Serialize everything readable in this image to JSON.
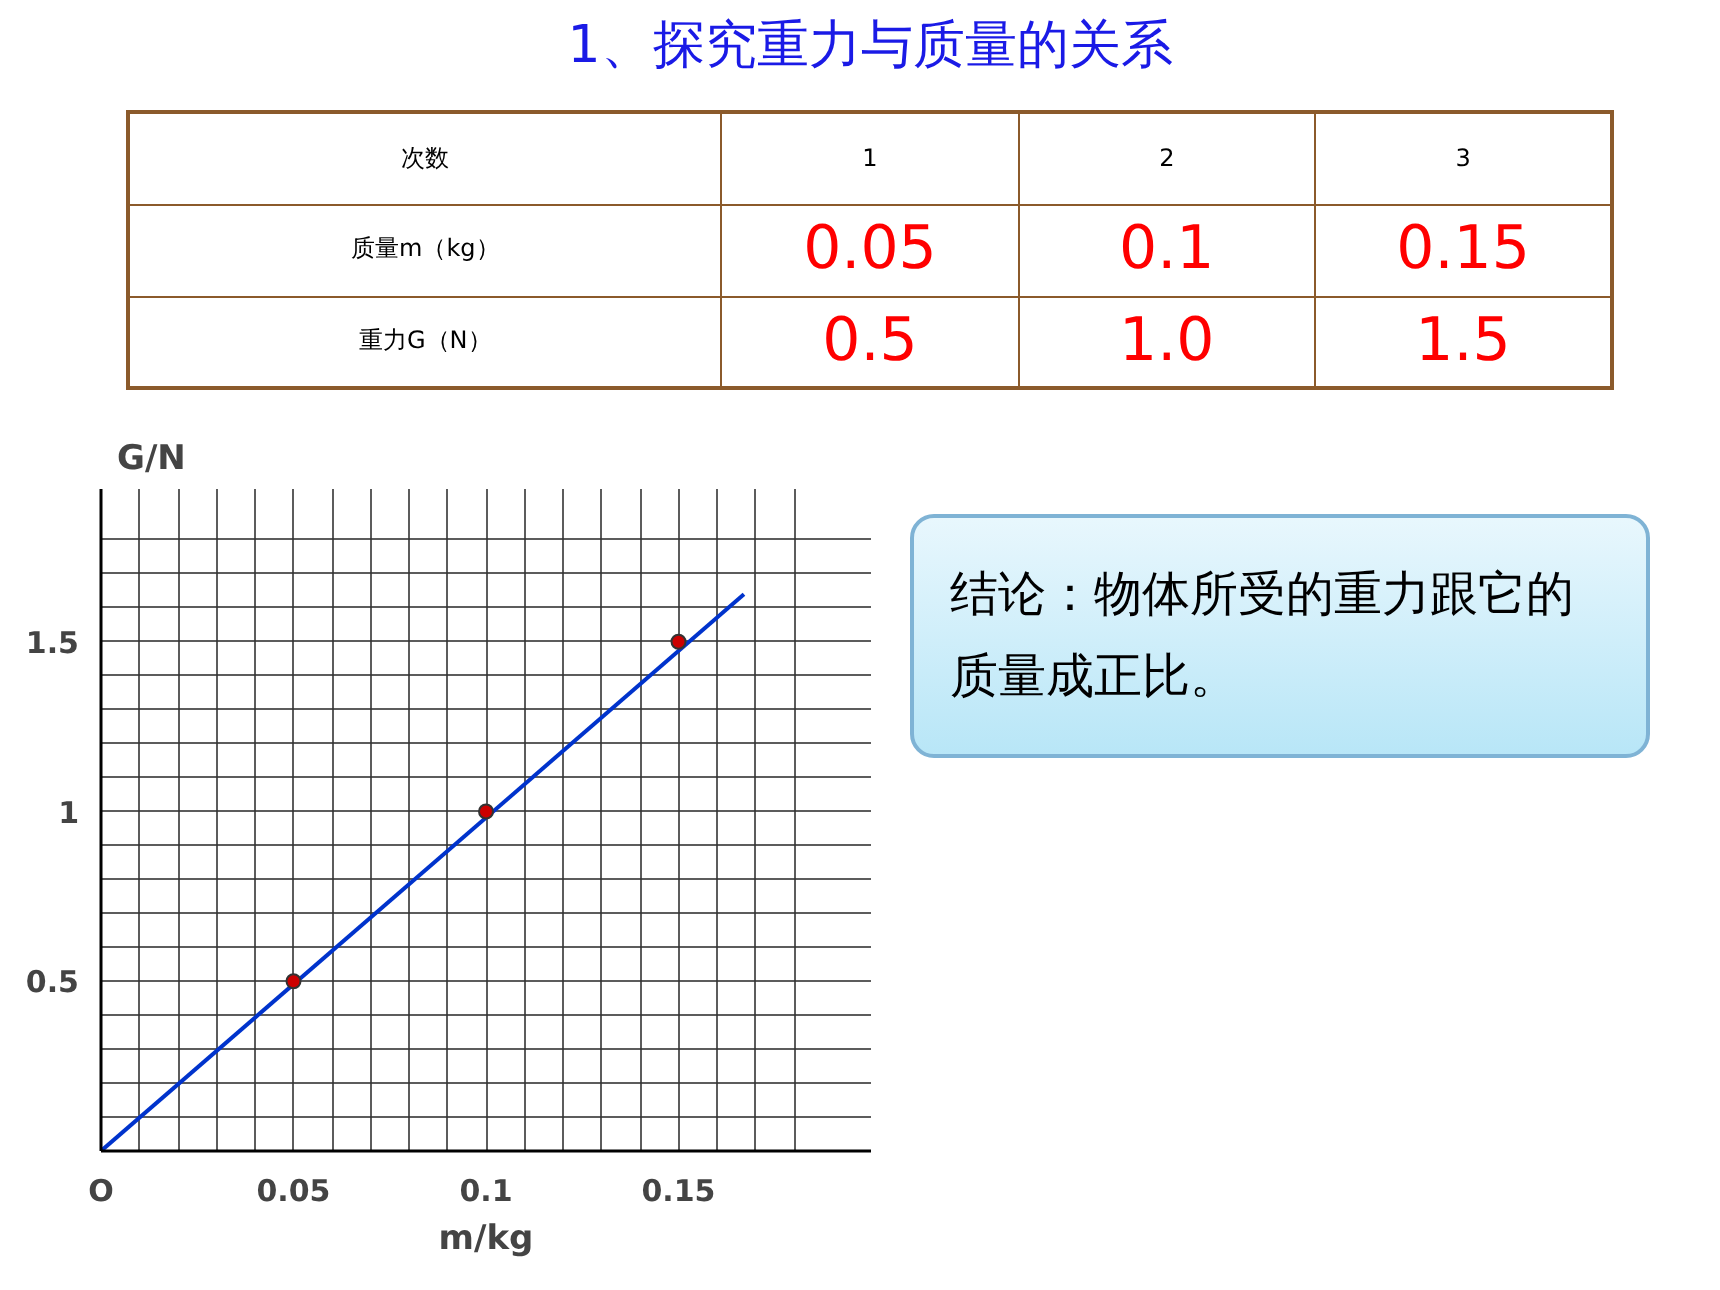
{
  "chart_data": [
    {
      "type": "other",
      "title": "1、探究重力与质量的关系",
      "annotations": [
        "次数",
        "1",
        "2",
        "3",
        "质量m（kg）",
        "0.05",
        "0.1",
        "0.15",
        "重力G（N）",
        "0.5",
        "1.0",
        "1.5"
      ]
    },
    {
      "type": "scatter",
      "xlabel": "m/kg",
      "ylabel": "G/N",
      "xlim": [
        0,
        0.2
      ],
      "ylim": [
        0,
        1.95
      ],
      "grid": true,
      "xticks": [
        {
          "value": 0,
          "label": "O"
        },
        {
          "value": 0.01,
          "label": null
        },
        {
          "value": 0.02,
          "label": null
        },
        {
          "value": 0.03,
          "label": null
        },
        {
          "value": 0.04,
          "label": null
        },
        0.05,
        {
          "value": 0.06,
          "label": null
        },
        {
          "value": 0.07,
          "label": null
        },
        {
          "value": 0.08,
          "label": null
        },
        {
          "value": 0.09,
          "label": null
        },
        0.1,
        {
          "value": 0.11,
          "label": null
        },
        {
          "value": 0.12,
          "label": null
        },
        {
          "value": 0.13,
          "label": null
        },
        {
          "value": 0.14,
          "label": null
        },
        0.15,
        {
          "value": 0.16,
          "label": null
        },
        {
          "value": 0.17,
          "label": null
        },
        {
          "value": 0.18,
          "label": null
        }
      ],
      "yticks": [
        {
          "value": 0.1,
          "label": null
        },
        {
          "value": 0.2,
          "label": null
        },
        {
          "value": 0.3,
          "label": null
        },
        {
          "value": 0.4,
          "label": null
        },
        0.5,
        {
          "value": 0.6,
          "label": null
        },
        {
          "value": 0.7,
          "label": null
        },
        {
          "value": 0.8,
          "label": null
        },
        {
          "value": 0.9,
          "label": null
        },
        1,
        {
          "value": 1.1,
          "label": null
        },
        {
          "value": 1.2,
          "label": null
        },
        {
          "value": 1.3,
          "label": null
        },
        {
          "value": 1.4,
          "label": null
        },
        1.5,
        {
          "value": 1.6,
          "label": null
        },
        {
          "value": 1.7,
          "label": null
        },
        {
          "value": 1.8,
          "label": null
        }
      ],
      "annotations": [
        "结论：物体所受的重力跟它的质量成正比。"
      ],
      "series": [
        {
          "type": "scatter",
          "marker": "circle",
          "color": "#cc0000",
          "x": [
            0.05,
            0.1,
            0.15
          ],
          "values": [
            0.5,
            1.0,
            1.5
          ]
        },
        {
          "type": "line",
          "color": "#0033cc",
          "x": [
            0,
            0.167
          ],
          "values": [
            0,
            1.64
          ]
        }
      ]
    }
  ]
}
